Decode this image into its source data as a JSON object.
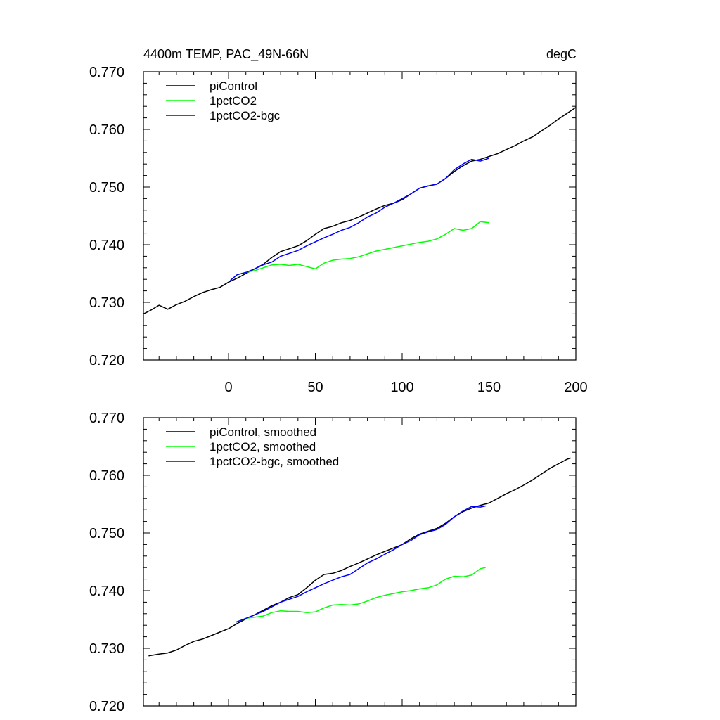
{
  "chart_data": [
    {
      "type": "line",
      "title": "4400m TEMP, PAC_49N-66N",
      "units": "degC",
      "xlim": [
        -49,
        200
      ],
      "ylim": [
        0.72,
        0.77
      ],
      "x_ticks": [
        0,
        50,
        100,
        150,
        200
      ],
      "x_tick_labels": [
        "0",
        "50",
        "100",
        "150",
        "200"
      ],
      "y_ticks": [
        0.72,
        0.73,
        0.74,
        0.75,
        0.76,
        0.77
      ],
      "y_tick_labels": [
        "0.720",
        "0.730",
        "0.740",
        "0.750",
        "0.760",
        "0.770"
      ],
      "legend_position": "top-left",
      "series": [
        {
          "name": "piControl",
          "color": "#000000",
          "points": [
            [
              -49,
              0.728
            ],
            [
              -45,
              0.7286
            ],
            [
              -40,
              0.7295
            ],
            [
              -35,
              0.7288
            ],
            [
              -30,
              0.7296
            ],
            [
              -25,
              0.7302
            ],
            [
              -20,
              0.731
            ],
            [
              -15,
              0.7317
            ],
            [
              -10,
              0.7322
            ],
            [
              -5,
              0.7326
            ],
            [
              0,
              0.7335
            ],
            [
              5,
              0.7342
            ],
            [
              10,
              0.735
            ],
            [
              15,
              0.7358
            ],
            [
              20,
              0.7366
            ],
            [
              25,
              0.7378
            ],
            [
              30,
              0.7388
            ],
            [
              35,
              0.7393
            ],
            [
              40,
              0.7398
            ],
            [
              45,
              0.7407
            ],
            [
              50,
              0.7418
            ],
            [
              55,
              0.7428
            ],
            [
              60,
              0.7432
            ],
            [
              65,
              0.7438
            ],
            [
              70,
              0.7442
            ],
            [
              75,
              0.7448
            ],
            [
              80,
              0.7455
            ],
            [
              85,
              0.7462
            ],
            [
              90,
              0.7468
            ],
            [
              95,
              0.7472
            ],
            [
              100,
              0.7478
            ],
            [
              105,
              0.7488
            ],
            [
              110,
              0.7498
            ],
            [
              115,
              0.7502
            ],
            [
              120,
              0.7505
            ],
            [
              125,
              0.7515
            ],
            [
              130,
              0.7527
            ],
            [
              135,
              0.7537
            ],
            [
              140,
              0.7545
            ],
            [
              145,
              0.7548
            ],
            [
              150,
              0.7553
            ],
            [
              155,
              0.7558
            ],
            [
              160,
              0.7565
            ],
            [
              165,
              0.7572
            ],
            [
              170,
              0.758
            ],
            [
              175,
              0.7587
            ],
            [
              180,
              0.7597
            ],
            [
              185,
              0.7607
            ],
            [
              190,
              0.7618
            ],
            [
              195,
              0.7628
            ],
            [
              200,
              0.7638
            ]
          ]
        },
        {
          "name": "1pctCO2",
          "color": "#00ff00",
          "points": [
            [
              1,
              0.7338
            ],
            [
              5,
              0.7348
            ],
            [
              10,
              0.7352
            ],
            [
              15,
              0.7355
            ],
            [
              20,
              0.736
            ],
            [
              25,
              0.7365
            ],
            [
              30,
              0.7366
            ],
            [
              35,
              0.7364
            ],
            [
              40,
              0.7366
            ],
            [
              45,
              0.7362
            ],
            [
              50,
              0.7358
            ],
            [
              55,
              0.7368
            ],
            [
              60,
              0.7373
            ],
            [
              65,
              0.7375
            ],
            [
              70,
              0.7376
            ],
            [
              75,
              0.7379
            ],
            [
              80,
              0.7384
            ],
            [
              85,
              0.7389
            ],
            [
              90,
              0.7392
            ],
            [
              95,
              0.7395
            ],
            [
              100,
              0.7398
            ],
            [
              105,
              0.7401
            ],
            [
              110,
              0.7404
            ],
            [
              115,
              0.7406
            ],
            [
              120,
              0.741
            ],
            [
              125,
              0.7418
            ],
            [
              130,
              0.7428
            ],
            [
              135,
              0.7425
            ],
            [
              140,
              0.7428
            ],
            [
              145,
              0.744
            ],
            [
              150,
              0.7438
            ]
          ]
        },
        {
          "name": "1pctCO2-bgc",
          "color": "#0000ff",
          "points": [
            [
              1,
              0.7338
            ],
            [
              5,
              0.7348
            ],
            [
              10,
              0.7352
            ],
            [
              15,
              0.7358
            ],
            [
              20,
              0.7365
            ],
            [
              25,
              0.737
            ],
            [
              30,
              0.738
            ],
            [
              35,
              0.7385
            ],
            [
              40,
              0.739
            ],
            [
              45,
              0.7398
            ],
            [
              50,
              0.7405
            ],
            [
              55,
              0.7412
            ],
            [
              60,
              0.7418
            ],
            [
              65,
              0.7425
            ],
            [
              70,
              0.743
            ],
            [
              75,
              0.7438
            ],
            [
              80,
              0.7448
            ],
            [
              85,
              0.7455
            ],
            [
              90,
              0.7465
            ],
            [
              95,
              0.7472
            ],
            [
              100,
              0.748
            ],
            [
              105,
              0.7488
            ],
            [
              110,
              0.7498
            ],
            [
              115,
              0.7502
            ],
            [
              120,
              0.7505
            ],
            [
              125,
              0.7515
            ],
            [
              130,
              0.753
            ],
            [
              135,
              0.754
            ],
            [
              140,
              0.7548
            ],
            [
              145,
              0.7545
            ],
            [
              150,
              0.755
            ]
          ]
        }
      ]
    },
    {
      "type": "line",
      "title": "",
      "xlim": [
        -49,
        200
      ],
      "ylim": [
        0.72,
        0.77
      ],
      "x_ticks": [
        0,
        50,
        100,
        150,
        200
      ],
      "y_ticks": [
        0.72,
        0.73,
        0.74,
        0.75,
        0.76,
        0.77
      ],
      "y_tick_labels": [
        "0.720",
        "0.730",
        "0.740",
        "0.750",
        "0.760",
        "0.770"
      ],
      "legend_position": "top-left",
      "series": [
        {
          "name": "piControl, smoothed",
          "color": "#000000",
          "points": [
            [
              -46,
              0.7287
            ],
            [
              -40,
              0.729
            ],
            [
              -35,
              0.7292
            ],
            [
              -30,
              0.7297
            ],
            [
              -25,
              0.7305
            ],
            [
              -20,
              0.7312
            ],
            [
              -15,
              0.7316
            ],
            [
              -10,
              0.7322
            ],
            [
              -5,
              0.7328
            ],
            [
              0,
              0.7334
            ],
            [
              5,
              0.7343
            ],
            [
              10,
              0.7351
            ],
            [
              15,
              0.7358
            ],
            [
              20,
              0.7366
            ],
            [
              25,
              0.7374
            ],
            [
              30,
              0.738
            ],
            [
              35,
              0.7388
            ],
            [
              40,
              0.7393
            ],
            [
              45,
              0.7405
            ],
            [
              50,
              0.7418
            ],
            [
              55,
              0.7428
            ],
            [
              60,
              0.743
            ],
            [
              65,
              0.7435
            ],
            [
              70,
              0.7442
            ],
            [
              75,
              0.7448
            ],
            [
              80,
              0.7455
            ],
            [
              85,
              0.7462
            ],
            [
              90,
              0.7468
            ],
            [
              95,
              0.7474
            ],
            [
              100,
              0.748
            ],
            [
              105,
              0.749
            ],
            [
              110,
              0.7498
            ],
            [
              115,
              0.7503
            ],
            [
              120,
              0.7508
            ],
            [
              125,
              0.7517
            ],
            [
              130,
              0.7528
            ],
            [
              135,
              0.7537
            ],
            [
              140,
              0.7543
            ],
            [
              145,
              0.7548
            ],
            [
              150,
              0.7552
            ],
            [
              155,
              0.756
            ],
            [
              160,
              0.7568
            ],
            [
              165,
              0.7575
            ],
            [
              170,
              0.7583
            ],
            [
              175,
              0.7592
            ],
            [
              180,
              0.7602
            ],
            [
              185,
              0.7612
            ],
            [
              190,
              0.762
            ],
            [
              195,
              0.7628
            ],
            [
              197,
              0.763
            ]
          ]
        },
        {
          "name": "1pctCO2, smoothed",
          "color": "#00ff00",
          "points": [
            [
              4,
              0.7345
            ],
            [
              10,
              0.7352
            ],
            [
              15,
              0.7354
            ],
            [
              20,
              0.7356
            ],
            [
              25,
              0.7362
            ],
            [
              30,
              0.7365
            ],
            [
              35,
              0.7364
            ],
            [
              40,
              0.7364
            ],
            [
              45,
              0.7362
            ],
            [
              50,
              0.7363
            ],
            [
              55,
              0.737
            ],
            [
              60,
              0.7375
            ],
            [
              65,
              0.7376
            ],
            [
              70,
              0.7375
            ],
            [
              75,
              0.7377
            ],
            [
              80,
              0.7382
            ],
            [
              85,
              0.7388
            ],
            [
              90,
              0.7392
            ],
            [
              95,
              0.7395
            ],
            [
              100,
              0.7398
            ],
            [
              105,
              0.74
            ],
            [
              110,
              0.7403
            ],
            [
              115,
              0.7405
            ],
            [
              120,
              0.741
            ],
            [
              125,
              0.742
            ],
            [
              130,
              0.7425
            ],
            [
              135,
              0.7424
            ],
            [
              140,
              0.7427
            ],
            [
              145,
              0.7438
            ],
            [
              148,
              0.744
            ]
          ]
        },
        {
          "name": "1pctCO2-bgc, smoothed",
          "color": "#0000ff",
          "points": [
            [
              4,
              0.7345
            ],
            [
              10,
              0.7352
            ],
            [
              15,
              0.7358
            ],
            [
              20,
              0.7364
            ],
            [
              25,
              0.7372
            ],
            [
              30,
              0.738
            ],
            [
              35,
              0.7385
            ],
            [
              40,
              0.739
            ],
            [
              45,
              0.7398
            ],
            [
              50,
              0.7405
            ],
            [
              55,
              0.7412
            ],
            [
              60,
              0.7418
            ],
            [
              65,
              0.7424
            ],
            [
              70,
              0.7428
            ],
            [
              75,
              0.7438
            ],
            [
              80,
              0.7448
            ],
            [
              85,
              0.7455
            ],
            [
              90,
              0.7463
            ],
            [
              95,
              0.7471
            ],
            [
              100,
              0.748
            ],
            [
              105,
              0.7487
            ],
            [
              110,
              0.7497
            ],
            [
              115,
              0.7502
            ],
            [
              120,
              0.7506
            ],
            [
              125,
              0.7515
            ],
            [
              130,
              0.7528
            ],
            [
              135,
              0.7538
            ],
            [
              140,
              0.7546
            ],
            [
              145,
              0.7545
            ],
            [
              148,
              0.7547
            ]
          ]
        }
      ]
    }
  ]
}
